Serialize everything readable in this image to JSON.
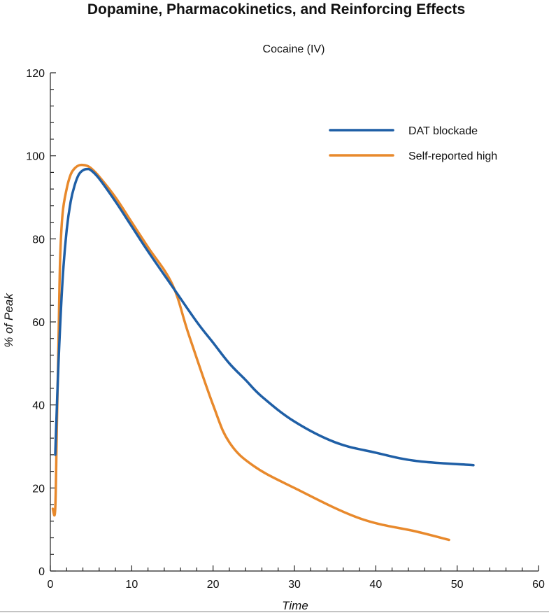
{
  "chart_data": {
    "type": "line",
    "title": "Dopamine, Pharmacokinetics, and Reinforcing Effects",
    "subtitle": "Cocaine (IV)",
    "xlabel": "Time",
    "ylabel": "% of Peak",
    "xlim": [
      0,
      60
    ],
    "ylim": [
      0,
      120
    ],
    "xticks": [
      0,
      10,
      20,
      30,
      40,
      50,
      60
    ],
    "yticks": [
      0,
      20,
      40,
      60,
      80,
      100,
      120
    ],
    "grid": false,
    "legend_position": "top-right",
    "series": [
      {
        "name": "DAT blockade",
        "color": "#1f5fa6",
        "x": [
          0.6,
          1,
          1.5,
          2,
          2.5,
          3,
          3.5,
          4,
          4.5,
          5,
          6,
          8,
          10,
          12,
          15,
          18,
          20,
          22,
          24,
          26,
          30,
          35,
          40,
          45,
          52
        ],
        "y": [
          28,
          50,
          70,
          82,
          89,
          93,
          95.5,
          96.5,
          96.8,
          96.5,
          94.5,
          89,
          83,
          77,
          68.5,
          60,
          55,
          50,
          46,
          42,
          36,
          31,
          28.5,
          26.5,
          25.5
        ]
      },
      {
        "name": "Self-reported high",
        "color": "#e8892c",
        "x": [
          0.3,
          0.6,
          0.8,
          1,
          1.2,
          1.5,
          2,
          2.5,
          3,
          3.5,
          4,
          4.5,
          5,
          6,
          8,
          10,
          12,
          15,
          17,
          20,
          22,
          25,
          30,
          38,
          45,
          49
        ],
        "y": [
          15,
          15,
          35,
          55,
          75,
          86,
          92,
          95.5,
          97,
          97.7,
          97.8,
          97.6,
          97,
          95,
          90,
          84,
          78,
          69,
          57,
          40,
          31,
          25.3,
          20,
          12.7,
          9.5,
          7.5
        ]
      }
    ]
  }
}
